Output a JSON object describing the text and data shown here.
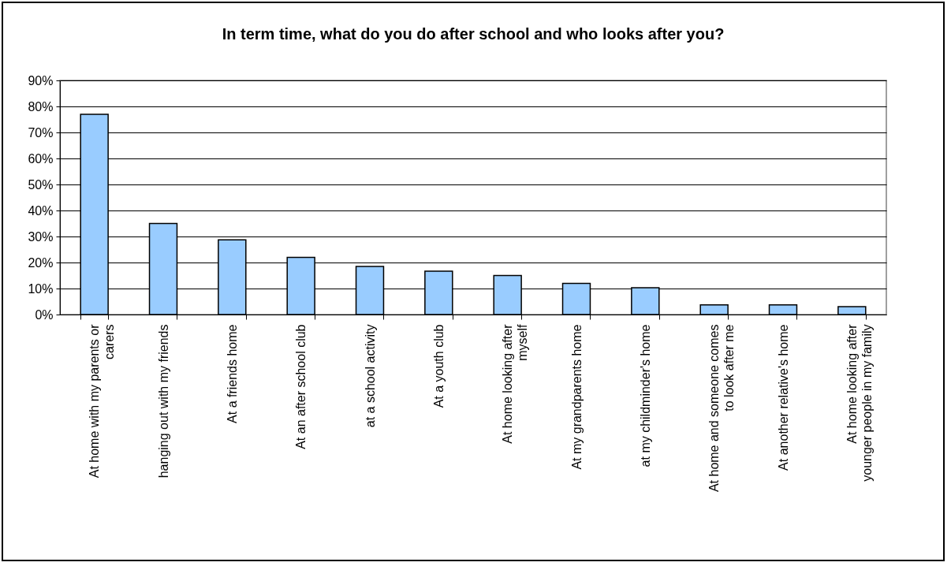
{
  "chart_data": {
    "type": "bar",
    "title": "In term time, what do you do after school and who looks after you?",
    "categories": [
      "At home with my parents or carers",
      "hanging out with my friends",
      "At a friends home",
      "At an after school club",
      "at a school activity",
      "At a youth club",
      "At home looking after myself",
      "At my grandparents home",
      "at my childminder's home",
      "At home and someone comes to look after me",
      "At another relative's home",
      "At home looking after younger people in my family"
    ],
    "values": [
      77,
      35,
      28.7,
      22,
      18.5,
      16.7,
      15,
      12,
      10.3,
      3.7,
      3.7,
      3
    ],
    "color": "#99ccff",
    "ylim": [
      0,
      90
    ],
    "yticks": [
      {
        "value": 0,
        "label": "0%"
      },
      {
        "value": 10,
        "label": "10%"
      },
      {
        "value": 20,
        "label": "20%"
      },
      {
        "value": 30,
        "label": "30%"
      },
      {
        "value": 40,
        "label": "40%"
      },
      {
        "value": 50,
        "label": "50%"
      },
      {
        "value": 60,
        "label": "60%"
      },
      {
        "value": 70,
        "label": "70%"
      },
      {
        "value": 80,
        "label": "80%"
      },
      {
        "value": 90,
        "label": "90%"
      }
    ],
    "grid": "y"
  }
}
